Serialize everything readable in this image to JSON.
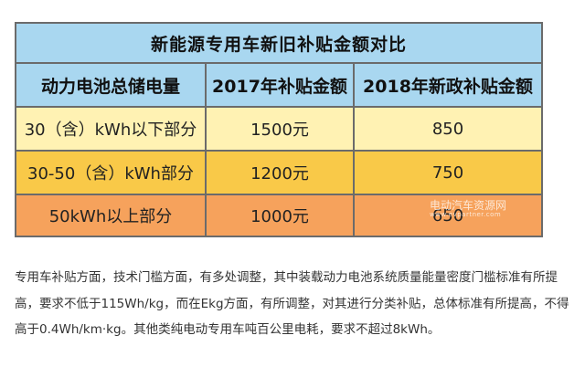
{
  "table": {
    "title": "新能源专用车新旧补贴金额对比",
    "headers": [
      "动力电池总储电量",
      "2017年补贴金额",
      "2018年新政补贴金额"
    ],
    "rows": [
      {
        "capacity": "30（含）kWh以下部分",
        "subsidy_2017": "1500元",
        "subsidy_2018": "850"
      },
      {
        "capacity": "30-50（含）kWh部分",
        "subsidy_2017": "1200元",
        "subsidy_2018": "750"
      },
      {
        "capacity": "50kWh以上部分",
        "subsidy_2017": "1000元",
        "subsidy_2018": "650"
      }
    ],
    "row_colors": [
      "#fff2b3",
      "#f9c948",
      "#f6a25c"
    ],
    "header_color": "#a9d7f0"
  },
  "watermark": {
    "text": "电动汽车资源网",
    "sub": "www.evpartner.com"
  },
  "paragraph": "专用车补贴方面，技术门槛方面，有多处调整，其中装载动力电池系统质量能量密度门槛标准有所提高，要求不低于115Wh/kg，而在Ekg方面，有所调整，对其进行分类补贴，总体标准有所提高，不得高于0.4Wh/km·kg。其他类纯电动专用车吨百公里电耗，要求不超过8kWh。"
}
